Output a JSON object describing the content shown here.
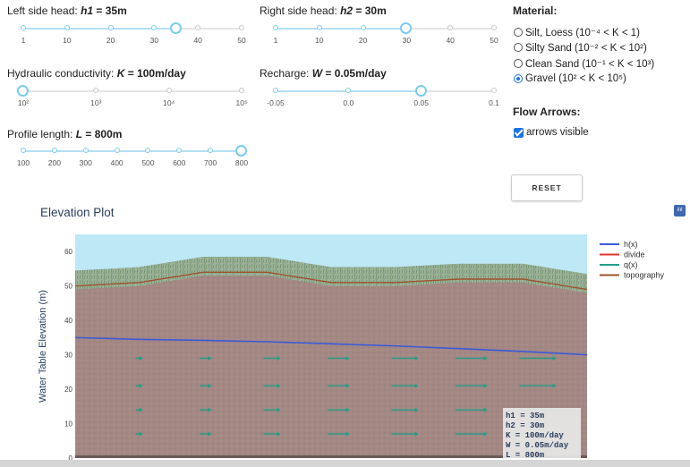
{
  "sliders": {
    "h1": {
      "label": "Left side head: ",
      "symbol": "h1",
      "value_text": " = 35m",
      "ticks": [
        "1",
        "10",
        "20",
        "30",
        "40",
        "50"
      ],
      "value": 35,
      "min": 1,
      "max": 50
    },
    "h2": {
      "label": "Right side head: ",
      "symbol": "h2",
      "value_text": " = 30m",
      "ticks": [
        "1",
        "10",
        "20",
        "30",
        "40",
        "50"
      ],
      "value": 30,
      "min": 1,
      "max": 50
    },
    "k": {
      "label": "Hydraulic conductivity: ",
      "symbol": "K",
      "value_text": " = 100m/day",
      "ticks": [
        "10²",
        "10³",
        "10⁴",
        "10⁵"
      ],
      "value_fraction": 0
    },
    "w": {
      "label": "Recharge: ",
      "symbol": "W",
      "value_text": " = 0.05m/day",
      "ticks": [
        "-0.05",
        "0.0",
        "0.05",
        "0.1"
      ],
      "value": 0.05,
      "min": -0.05,
      "max": 0.1
    },
    "l": {
      "label": "Profile length: ",
      "symbol": "L",
      "value_text": " = 800m",
      "ticks": [
        "100",
        "200",
        "300",
        "400",
        "500",
        "600",
        "700",
        "800"
      ],
      "value": 800,
      "min": 100,
      "max": 800
    }
  },
  "material": {
    "heading": "Material:",
    "options": [
      {
        "label": "Silt, Loess (10⁻⁴ < K < 1)",
        "selected": false
      },
      {
        "label": "Silty Sand (10⁻² < K < 10²)",
        "selected": false
      },
      {
        "label": "Clean Sand (10⁻¹ < K < 10³)",
        "selected": false
      },
      {
        "label": "Gravel (10² < K < 10⁵)",
        "selected": true
      }
    ]
  },
  "flow_arrows": {
    "heading": "Flow Arrows:",
    "checkbox_label": "arrows visible",
    "checked": true
  },
  "reset_label": "RESET",
  "plot": {
    "title": "Elevation Plot",
    "modebar_icon": "plotly-logo-icon",
    "info_lines": [
      "h1 = 35m",
      "h2 = 30m",
      "K = 100m/day",
      "W = 0.05m/day",
      "L = 800m"
    ]
  },
  "chart_data": {
    "type": "line",
    "title": "Elevation Plot",
    "xlabel": "",
    "ylabel": "Water Table Elevation (m)",
    "ylim": [
      0,
      65
    ],
    "yticks": [
      0,
      10,
      20,
      30,
      40,
      50,
      60
    ],
    "xlim": [
      0,
      800
    ],
    "legend_position": "top-right",
    "colors": {
      "h": "#3b5ad9",
      "divide": "#e0372e",
      "q": "#1f9e8a",
      "topography": "#a0522d",
      "sky": "#bde8f6",
      "ground": "#a48a84"
    },
    "series": [
      {
        "name": "h(x)",
        "x": [
          0,
          100,
          200,
          300,
          400,
          500,
          600,
          700,
          800
        ],
        "y": [
          35.0,
          34.5,
          34.2,
          33.8,
          33.2,
          32.6,
          31.8,
          31.0,
          30.0
        ]
      },
      {
        "name": "divide",
        "x": [],
        "y": []
      },
      {
        "name": "q(x)",
        "x": [],
        "y": []
      },
      {
        "name": "topography",
        "x": [
          0,
          100,
          200,
          300,
          400,
          500,
          600,
          700,
          800
        ],
        "y": [
          50.0,
          51.0,
          54.0,
          54.0,
          51.0,
          51.0,
          52.0,
          52.0,
          49.0
        ]
      }
    ]
  }
}
